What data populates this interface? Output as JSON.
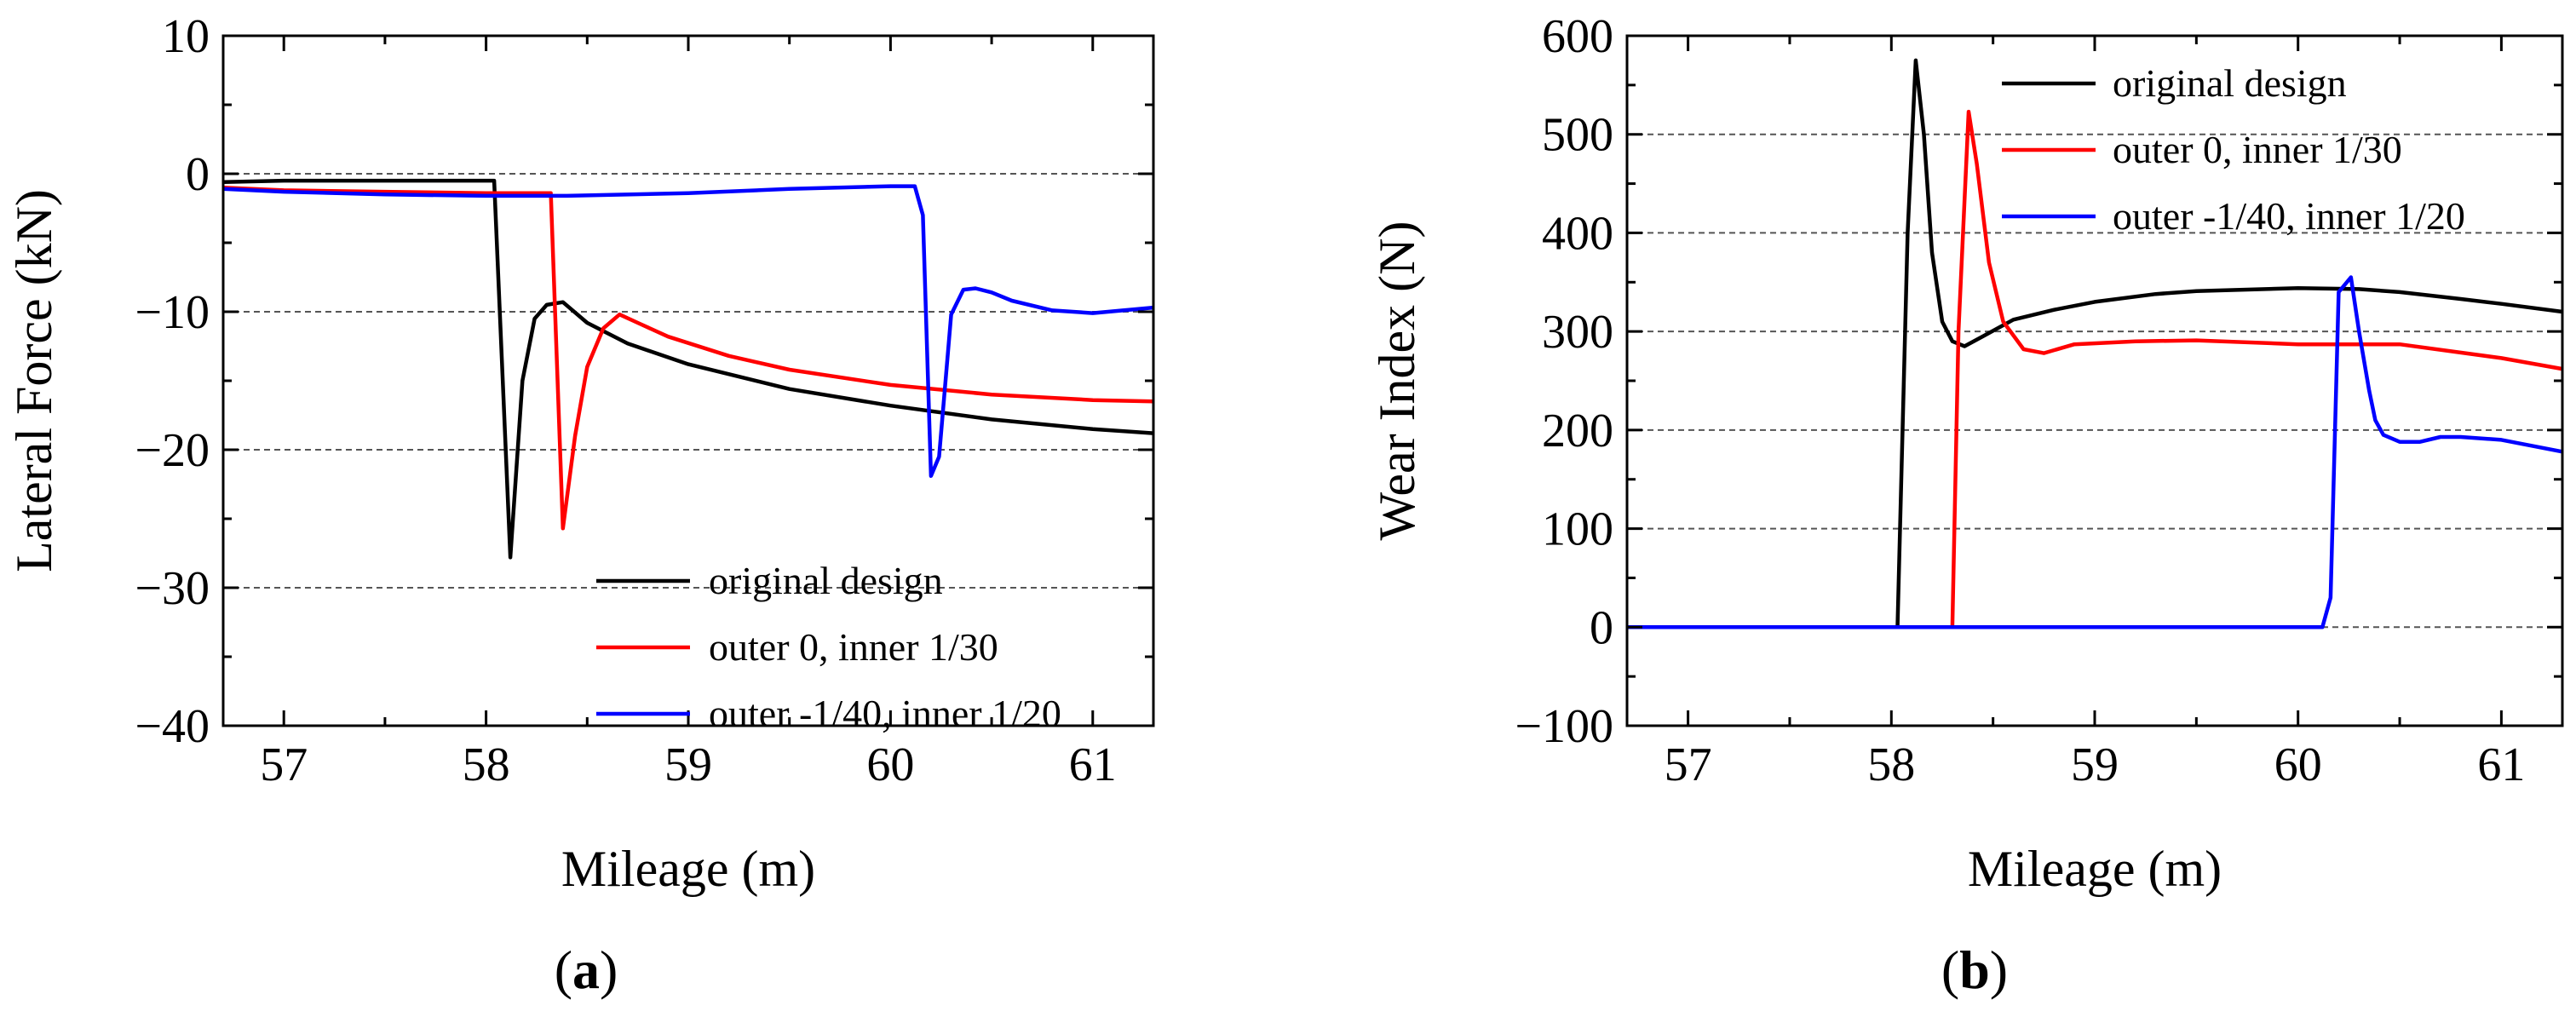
{
  "figure": {
    "panels": [
      {
        "open": "(",
        "letter": "a",
        "close": ")"
      },
      {
        "open": "(",
        "letter": "b",
        "close": ")"
      }
    ]
  },
  "chart_data": [
    {
      "id": "a",
      "type": "line",
      "xlabel": "Mileage (m)",
      "ylabel": "Lateral Force (kN)",
      "xlim": [
        56.7,
        61.3
      ],
      "ylim": [
        -40,
        10
      ],
      "xticks": [
        57,
        58,
        59,
        60,
        61
      ],
      "yticks": [
        10,
        0,
        -10,
        -20,
        -30,
        -40
      ],
      "ytick_labels": [
        "10",
        "0",
        "−10",
        "−20",
        "−30",
        "−40"
      ],
      "gridlines_y": [
        0,
        -10,
        -20,
        -30
      ],
      "legend_position": "bottom-right",
      "series": [
        {
          "name": "original design",
          "color": "#000000",
          "x": [
            56.7,
            57.0,
            57.5,
            58.0,
            58.04,
            58.12,
            58.18,
            58.24,
            58.3,
            58.38,
            58.5,
            58.7,
            59.0,
            59.5,
            60.0,
            60.5,
            61.0,
            61.3
          ],
          "y": [
            -0.6,
            -0.5,
            -0.5,
            -0.5,
            -0.5,
            -27.8,
            -15.0,
            -10.5,
            -9.5,
            -9.3,
            -10.8,
            -12.3,
            -13.8,
            -15.6,
            -16.8,
            -17.8,
            -18.5,
            -18.8
          ]
        },
        {
          "name": "outer 0, inner 1/30",
          "color": "#ff0000",
          "x": [
            56.7,
            57.0,
            57.5,
            58.0,
            58.3,
            58.32,
            58.38,
            58.44,
            58.5,
            58.58,
            58.66,
            58.75,
            58.9,
            59.2,
            59.5,
            60.0,
            60.5,
            61.0,
            61.3
          ],
          "y": [
            -1.0,
            -1.2,
            -1.3,
            -1.4,
            -1.4,
            -1.4,
            -25.7,
            -19.0,
            -14.0,
            -11.2,
            -10.2,
            -10.8,
            -11.8,
            -13.2,
            -14.2,
            -15.3,
            -16.0,
            -16.4,
            -16.5
          ]
        },
        {
          "name": "outer -1/40, inner 1/20",
          "color": "#0000ff",
          "x": [
            56.7,
            57.0,
            57.5,
            58.0,
            58.4,
            59.0,
            59.5,
            60.0,
            60.12,
            60.16,
            60.2,
            60.24,
            60.3,
            60.36,
            60.42,
            60.5,
            60.6,
            60.8,
            61.0,
            61.3
          ],
          "y": [
            -1.1,
            -1.3,
            -1.5,
            -1.6,
            -1.6,
            -1.4,
            -1.1,
            -0.9,
            -0.9,
            -3.0,
            -21.9,
            -20.5,
            -10.2,
            -8.4,
            -8.3,
            -8.6,
            -9.2,
            -9.9,
            -10.1,
            -9.7
          ]
        }
      ]
    },
    {
      "id": "b",
      "type": "line",
      "xlabel": "Mileage (m)",
      "ylabel": "Wear Index (N)",
      "xlim": [
        56.7,
        61.3
      ],
      "ylim": [
        -100,
        600
      ],
      "xticks": [
        57,
        58,
        59,
        60,
        61
      ],
      "yticks": [
        600,
        500,
        400,
        300,
        200,
        100,
        0,
        -100
      ],
      "ytick_labels": [
        "600",
        "500",
        "400",
        "300",
        "200",
        "100",
        "0",
        "−100"
      ],
      "gridlines_y": [
        500,
        400,
        300,
        200,
        100,
        0
      ],
      "legend_position": "top-right",
      "series": [
        {
          "name": "original design",
          "color": "#000000",
          "x": [
            56.7,
            57.0,
            58.0,
            58.03,
            58.08,
            58.12,
            58.16,
            58.2,
            58.25,
            58.3,
            58.36,
            58.45,
            58.6,
            58.8,
            59.0,
            59.3,
            59.5,
            60.0,
            60.3,
            60.5,
            60.8,
            61.0,
            61.3
          ],
          "y": [
            0,
            0,
            0,
            0,
            400,
            575,
            500,
            380,
            310,
            290,
            285,
            295,
            312,
            322,
            330,
            338,
            341,
            344,
            343,
            340,
            333,
            328,
            320
          ]
        },
        {
          "name": "outer 0, inner 1/30",
          "color": "#ff0000",
          "x": [
            56.7,
            57.0,
            58.0,
            58.3,
            58.33,
            58.38,
            58.42,
            58.48,
            58.55,
            58.65,
            58.75,
            58.9,
            59.2,
            59.5,
            60.0,
            60.5,
            61.0,
            61.3
          ],
          "y": [
            0,
            0,
            0,
            0,
            300,
            523,
            470,
            370,
            310,
            282,
            278,
            287,
            290,
            291,
            287,
            287,
            273,
            262
          ]
        },
        {
          "name": "outer -1/40, inner 1/20",
          "color": "#0000ff",
          "x": [
            56.7,
            57.0,
            58.0,
            59.0,
            60.12,
            60.16,
            60.2,
            60.26,
            60.3,
            60.35,
            60.38,
            60.42,
            60.5,
            60.6,
            60.7,
            60.8,
            61.0,
            61.3
          ],
          "y": [
            0,
            0,
            0,
            0,
            0,
            30,
            340,
            355,
            300,
            240,
            210,
            195,
            188,
            188,
            193,
            193,
            190,
            178
          ]
        }
      ]
    }
  ]
}
